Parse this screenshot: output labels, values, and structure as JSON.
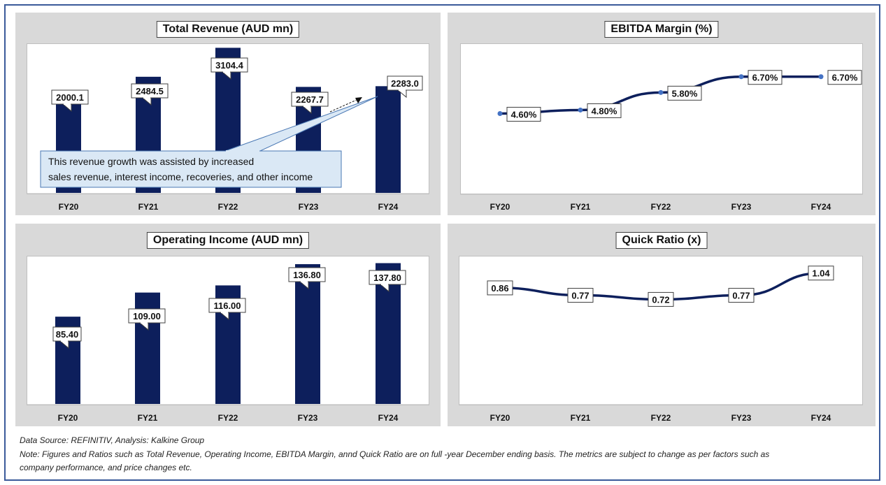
{
  "chart_data": [
    {
      "type": "bar",
      "title": "Total Revenue (AUD mn)",
      "categories": [
        "FY20",
        "FY21",
        "FY22",
        "FY23",
        "FY24"
      ],
      "values": [
        2000.1,
        2484.5,
        3104.4,
        2267.7,
        2283.0
      ],
      "data_labels": [
        "2000.1",
        "2484.5",
        "3104.4",
        "2267.7",
        "2283.0"
      ],
      "ylim": [
        0,
        3200
      ],
      "annotation": "This revenue growth was assisted by increased sales revenue, interest income, recoveries, and other income",
      "color": "#0d1f5c"
    },
    {
      "type": "line",
      "title": "EBITDA Margin (%)",
      "categories": [
        "FY20",
        "FY21",
        "FY22",
        "FY23",
        "FY24"
      ],
      "values": [
        4.6,
        4.8,
        5.8,
        6.7,
        6.7
      ],
      "data_labels": [
        "4.60%",
        "4.80%",
        "5.80%",
        "6.70%",
        "6.70%"
      ],
      "ylim": [
        0,
        8.6
      ],
      "color": "#0d1f5c",
      "marker_color": "#4472c4"
    },
    {
      "type": "bar",
      "title": "Operating Income (AUD mn)",
      "categories": [
        "FY20",
        "FY21",
        "FY22",
        "FY23",
        "FY24"
      ],
      "values": [
        85.4,
        109.0,
        116.0,
        136.8,
        137.8
      ],
      "data_labels": [
        "85.40",
        "109.00",
        "116.00",
        "136.80",
        "137.80"
      ],
      "ylim": [
        0,
        145
      ],
      "color": "#0d1f5c"
    },
    {
      "type": "line",
      "title": "Quick Ratio (x)",
      "categories": [
        "FY20",
        "FY21",
        "FY22",
        "FY23",
        "FY24"
      ],
      "values": [
        0.86,
        0.77,
        0.72,
        0.77,
        1.04
      ],
      "data_labels": [
        "0.86",
        "0.77",
        "0.72",
        "0.77",
        "1.04"
      ],
      "ylim": [
        -0.55,
        1.25
      ],
      "color": "#0d1f5c"
    }
  ],
  "footer": {
    "source": "Data Source: REFINITIV, Analysis: Kalkine Group",
    "note_line1": "Note: Figures and Ratios such as Total Revenue, Operating Income, EBITDA Margin, annd Quick Ratio are on full -year December ending basis. The metrics are subject to change as per factors such as",
    "note_line2": "company performance, and price changes etc."
  }
}
